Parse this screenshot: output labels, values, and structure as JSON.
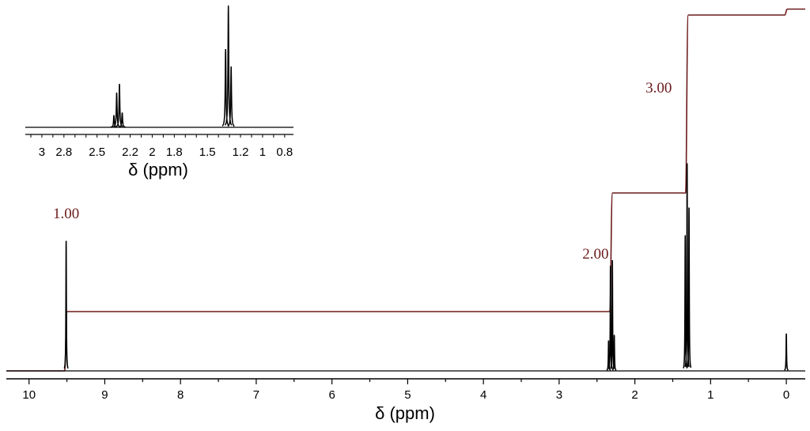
{
  "chart_data": [
    {
      "type": "line",
      "xlabel": "δ (ppm)",
      "xlim": [
        10.3,
        -0.25
      ],
      "x_reversed": true,
      "x_ticks": [
        10,
        9,
        8,
        7,
        6,
        5,
        4,
        3,
        2,
        1,
        0
      ],
      "x_tick_labels": [
        "10",
        "9",
        "8",
        "7",
        "6",
        "5",
        "4",
        "3",
        "2",
        "1",
        "0"
      ],
      "grid": false,
      "colors": {
        "spectrum": "#000000",
        "integral": "#6b1a1a",
        "integral_label": "#6b1a1a"
      },
      "series": [
        {
          "role": "spectrum",
          "peaks": [
            {
              "x": 9.51,
              "h": 0.94
            },
            {
              "x": 2.347,
              "h": 0.22
            },
            {
              "x": 2.322,
              "h": 0.76
            },
            {
              "x": 2.297,
              "h": 0.8
            },
            {
              "x": 2.272,
              "h": 0.26
            },
            {
              "x": 1.335,
              "h": 0.98
            },
            {
              "x": 1.31,
              "h": 1.5
            },
            {
              "x": 1.285,
              "h": 1.18
            },
            {
              "x": 0.0,
              "h": 0.27
            }
          ]
        },
        {
          "role": "integral",
          "steps": [
            {
              "x": 9.51,
              "value": 1.0
            },
            {
              "x": 2.31,
              "value": 2.0
            },
            {
              "x": 1.31,
              "value": 3.0
            },
            {
              "x": 0.0,
              "value": 0.1
            }
          ]
        }
      ],
      "annotations": [
        {
          "text": "1.00",
          "x": 9.51
        },
        {
          "text": "2.00",
          "x": 2.31
        },
        {
          "text": "3.00",
          "x": 1.31
        }
      ]
    },
    {
      "type": "line",
      "role": "inset",
      "xlabel": "δ (ppm)",
      "xlim": [
        3.15,
        0.72
      ],
      "x_reversed": true,
      "x_ticks": [
        3,
        2.8,
        2.5,
        2.2,
        2,
        1.8,
        1.5,
        1.2,
        1,
        0.8
      ],
      "x_tick_labels": [
        "3",
        "2.8",
        "2.5",
        "2.2",
        "2",
        "1.8",
        "1.5",
        "1.2",
        "1",
        "0.8"
      ],
      "grid": false,
      "series": [
        {
          "role": "spectrum",
          "peaks": [
            {
              "x": 2.347,
              "h": 0.14
            },
            {
              "x": 2.322,
              "h": 0.4
            },
            {
              "x": 2.297,
              "h": 0.5
            },
            {
              "x": 2.272,
              "h": 0.17
            },
            {
              "x": 1.335,
              "h": 0.9
            },
            {
              "x": 1.31,
              "h": 1.4
            },
            {
              "x": 1.285,
              "h": 0.7
            }
          ]
        }
      ]
    }
  ]
}
